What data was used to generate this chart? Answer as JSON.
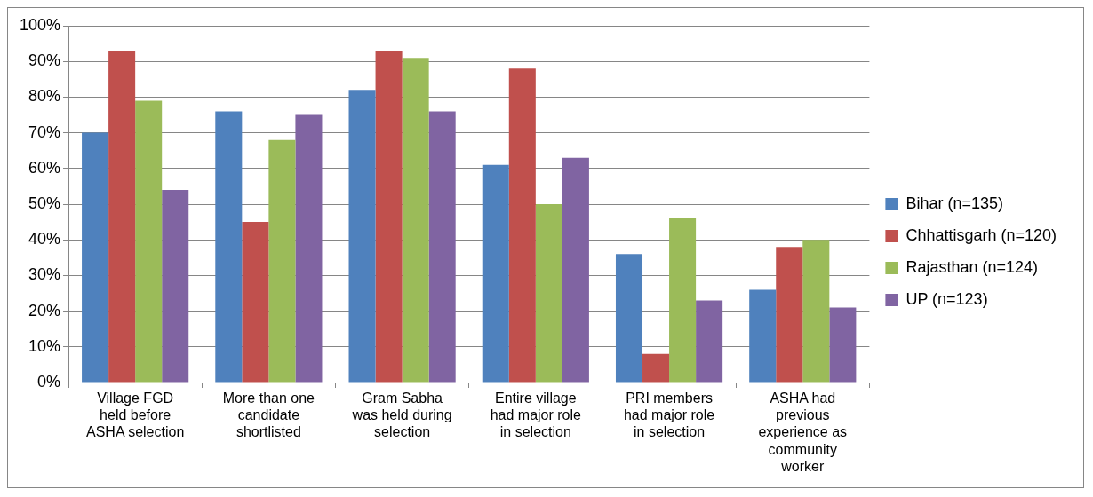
{
  "chart_data": {
    "type": "bar",
    "categories": [
      "Village FGD held before ASHA selection",
      "More than one candidate shortlisted",
      "Gram Sabha was held during selection",
      "Entire village had major role in selection",
      "PRI members had major role in selection",
      "ASHA had previous experience as community worker"
    ],
    "series": [
      {
        "name": "Bihar (n=135)",
        "color": "#4f81bd",
        "values": [
          70,
          76,
          82,
          61,
          36,
          26
        ]
      },
      {
        "name": "Chhattisgarh (n=120)",
        "color": "#c0504d",
        "values": [
          93,
          45,
          93,
          88,
          8,
          38
        ]
      },
      {
        "name": "Rajasthan (n=124)",
        "color": "#9bbb59",
        "values": [
          79,
          68,
          91,
          50,
          46,
          40
        ]
      },
      {
        "name": "UP (n=123)",
        "color": "#8064a2",
        "values": [
          54,
          75,
          76,
          63,
          23,
          21
        ]
      }
    ],
    "ylim": [
      0,
      100
    ],
    "yticks": [
      {
        "value": 0,
        "label": "0%"
      },
      {
        "value": 10,
        "label": "10%"
      },
      {
        "value": 20,
        "label": "20%"
      },
      {
        "value": 30,
        "label": "30%"
      },
      {
        "value": 40,
        "label": "40%"
      },
      {
        "value": 50,
        "label": "50%"
      },
      {
        "value": 60,
        "label": "60%"
      },
      {
        "value": 70,
        "label": "70%"
      },
      {
        "value": 80,
        "label": "80%"
      },
      {
        "value": 90,
        "label": "90%"
      },
      {
        "value": 100,
        "label": "100%"
      }
    ],
    "grid": "y",
    "legend": "right"
  }
}
